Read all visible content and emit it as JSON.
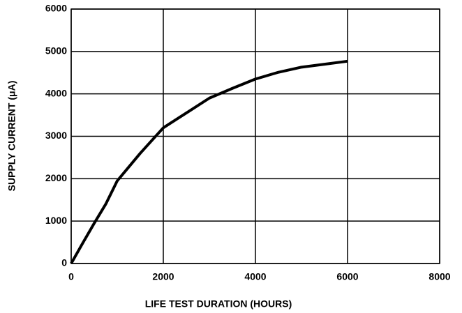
{
  "chart_data": {
    "type": "line",
    "x_label": "LIFE TEST DURATION (HOURS)",
    "y_label": "SUPPLY CURRENT (μA)",
    "x": [
      0,
      250,
      500,
      750,
      1000,
      1500,
      2000,
      2500,
      3000,
      3500,
      4000,
      4500,
      5000,
      5500,
      6000
    ],
    "series": [
      {
        "color": "#000000",
        "values": [
          0,
          480,
          950,
          1400,
          1950,
          2600,
          3200,
          3550,
          3900,
          4130,
          4350,
          4510,
          4630,
          4700,
          4770
        ]
      }
    ],
    "xlim": [
      0,
      8000
    ],
    "xticks": [
      0,
      2000,
      4000,
      6000,
      8000
    ],
    "ylim": [
      0,
      6000
    ],
    "yticks": [
      0,
      1000,
      2000,
      3000,
      4000,
      5000,
      6000
    ],
    "grid": true
  }
}
